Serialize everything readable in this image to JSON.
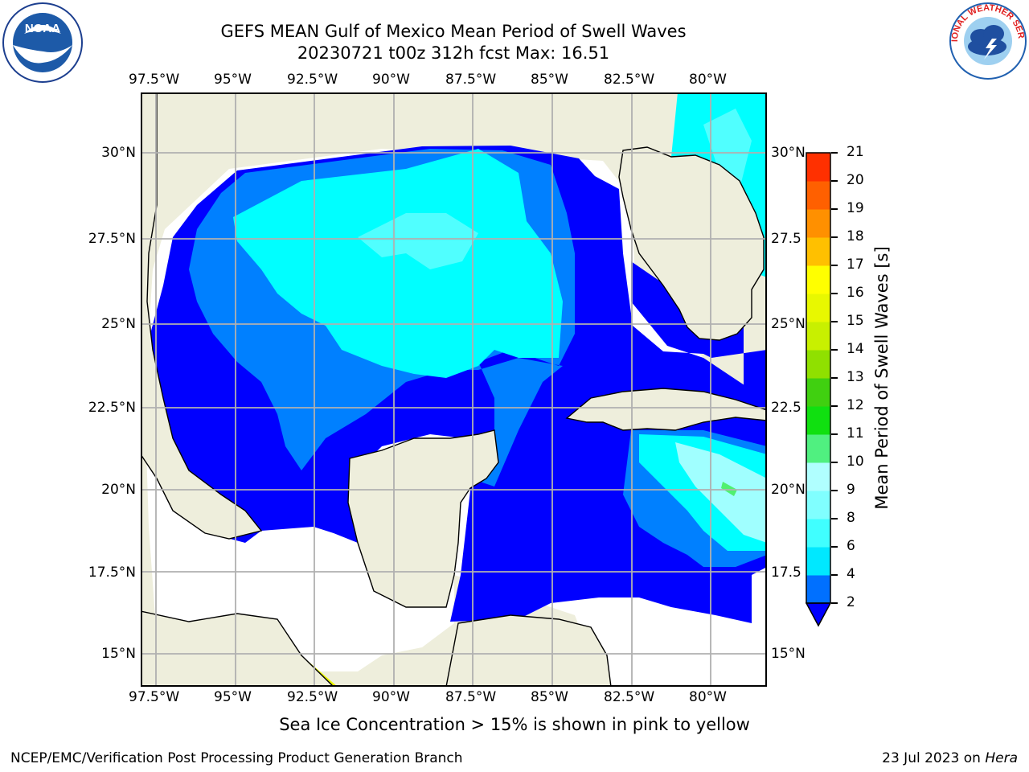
{
  "title_line1": "GEFS MEAN Gulf of Mexico Mean Period of Swell Waves",
  "title_line2": "20230721 t00z 312h fcst   Max: 16.51",
  "lon_labels": [
    "97.5°W",
    "95°W",
    "92.5°W",
    "90°W",
    "87.5°W",
    "85°W",
    "82.5°W",
    "80°W"
  ],
  "lat_labels_left": [
    "30°N",
    "27.5°N",
    "25°N",
    "22.5°N",
    "20°N",
    "17.5°N",
    "15°N"
  ],
  "lat_labels_right": [
    "30°N",
    "27.5",
    "25°N",
    "22.5",
    "20°N",
    "17.5",
    "15°N"
  ],
  "colorbar": {
    "title": "Mean Period of Swell Waves [s]",
    "labels": [
      "2",
      "4",
      "6",
      "8",
      "9",
      "10",
      "11",
      "12",
      "13",
      "14",
      "15",
      "16",
      "17",
      "18",
      "19",
      "20",
      "21"
    ],
    "colors": [
      "#0070ff",
      "#00e8ff",
      "#40ffff",
      "#80ffff",
      "#b0ffff",
      "#50f080",
      "#10e010",
      "#40d010",
      "#90e000",
      "#c8f000",
      "#e8f800",
      "#ffff00",
      "#ffc000",
      "#ff9000",
      "#ff6000",
      "#ff3000",
      "#ff0000"
    ]
  },
  "map_colors": {
    "land": "#eeeedc",
    "deep_blue": "#0000ff",
    "mid_blue": "#0080ff",
    "cyan": "#00ffff",
    "light_cyan": "#50ffff",
    "pale_cyan": "#a0ffff",
    "green": "#50f070",
    "ice_yellow": "#eaf700",
    "grid": "#b0b0b0"
  },
  "logos": {
    "noaa": "NOAA",
    "nws": "NATIONAL WEATHER SERVICE"
  },
  "footer": {
    "note": "Sea Ice Concentration > 15% is shown in pink to yellow",
    "credit": "NCEP/EMC/Verification Post Processing Product Generation Branch",
    "date": "23 Jul 2023 on ",
    "host": "Hera"
  }
}
